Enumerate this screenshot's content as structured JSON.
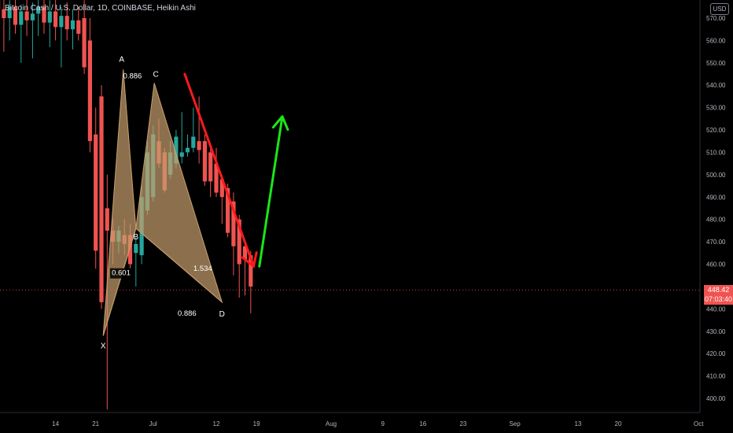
{
  "header": {
    "title": "Bitcoin Cash / U.S. Dollar, 1D, COINBASE, Heikin Ashi"
  },
  "currency": "USD",
  "last_price": {
    "value": "448.42",
    "countdown": "07:03:40"
  },
  "colors": {
    "background": "#000000",
    "up": "#26a69a",
    "down": "#ef5350",
    "pattern_fill": "#c8a06e",
    "arrow_down": "#ff1a1a",
    "arrow_up": "#19e619",
    "axis_text": "#b2b5be"
  },
  "chart_data": {
    "type": "candlestick",
    "style": "Heikin Ashi",
    "ylim": [
      392,
      575
    ],
    "y_ticks": [
      "400.00",
      "410.00",
      "420.00",
      "430.00",
      "440.00",
      "450.00",
      "460.00",
      "470.00",
      "480.00",
      "490.00",
      "500.00",
      "510.00",
      "520.00",
      "530.00",
      "540.00",
      "550.00",
      "560.00",
      "570.00"
    ],
    "x_ticks": [
      "14",
      "21",
      "Jul",
      "12",
      "19",
      "Aug",
      "9",
      "16",
      "23",
      "Sep",
      "13",
      "20",
      "Oct"
    ],
    "x_tick_days": [
      -3,
      4,
      14,
      25,
      32,
      45,
      54,
      61,
      68,
      77,
      88,
      95,
      109
    ],
    "candles": [
      {
        "d": -13,
        "o": 578,
        "h": 586,
        "l": 545,
        "c": 574
      },
      {
        "d": -12,
        "o": 574,
        "h": 582,
        "l": 555,
        "c": 570
      },
      {
        "d": -11,
        "o": 570,
        "h": 578,
        "l": 560,
        "c": 575
      },
      {
        "d": -10,
        "o": 575,
        "h": 580,
        "l": 563,
        "c": 567
      },
      {
        "d": -9,
        "o": 567,
        "h": 576,
        "l": 550,
        "c": 573
      },
      {
        "d": -8,
        "o": 573,
        "h": 580,
        "l": 562,
        "c": 569
      },
      {
        "d": -7,
        "o": 569,
        "h": 577,
        "l": 552,
        "c": 572
      },
      {
        "d": -6,
        "o": 572,
        "h": 581,
        "l": 562,
        "c": 575
      },
      {
        "d": -5,
        "o": 575,
        "h": 580,
        "l": 563,
        "c": 568
      },
      {
        "d": -4,
        "o": 568,
        "h": 578,
        "l": 557,
        "c": 573
      },
      {
        "d": -3,
        "o": 573,
        "h": 579,
        "l": 560,
        "c": 566
      },
      {
        "d": -2,
        "o": 566,
        "h": 575,
        "l": 548,
        "c": 571
      },
      {
        "d": -1,
        "o": 571,
        "h": 577,
        "l": 560,
        "c": 565
      },
      {
        "d": 0,
        "o": 565,
        "h": 574,
        "l": 556,
        "c": 569
      },
      {
        "d": 1,
        "o": 569,
        "h": 575,
        "l": 560,
        "c": 563
      },
      {
        "d": 2,
        "o": 570,
        "h": 578,
        "l": 545,
        "c": 548
      },
      {
        "d": 3,
        "o": 560,
        "h": 570,
        "l": 510,
        "c": 515
      },
      {
        "d": 4,
        "o": 518,
        "h": 530,
        "l": 458,
        "c": 466
      },
      {
        "d": 5,
        "o": 535,
        "h": 540,
        "l": 440,
        "c": 443
      },
      {
        "d": 6,
        "o": 485,
        "h": 500,
        "l": 395,
        "c": 475
      },
      {
        "d": 7,
        "o": 475,
        "h": 480,
        "l": 460,
        "c": 470
      },
      {
        "d": 8,
        "o": 470,
        "h": 477,
        "l": 465,
        "c": 475
      },
      {
        "d": 9,
        "o": 473,
        "h": 480,
        "l": 464,
        "c": 469
      },
      {
        "d": 10,
        "o": 473,
        "h": 478,
        "l": 458,
        "c": 460
      },
      {
        "d": 11,
        "o": 465,
        "h": 472,
        "l": 450,
        "c": 469
      },
      {
        "d": 12,
        "o": 464,
        "h": 495,
        "l": 460,
        "c": 490
      },
      {
        "d": 13,
        "o": 484,
        "h": 515,
        "l": 482,
        "c": 510
      },
      {
        "d": 14,
        "o": 490,
        "h": 522,
        "l": 488,
        "c": 518
      },
      {
        "d": 15,
        "o": 515,
        "h": 525,
        "l": 503,
        "c": 505
      },
      {
        "d": 16,
        "o": 510,
        "h": 512,
        "l": 492,
        "c": 493
      },
      {
        "d": 17,
        "o": 500,
        "h": 515,
        "l": 498,
        "c": 510
      },
      {
        "d": 18,
        "o": 505,
        "h": 520,
        "l": 503,
        "c": 517
      },
      {
        "d": 19,
        "o": 508,
        "h": 528,
        "l": 505,
        "c": 510
      },
      {
        "d": 20,
        "o": 510,
        "h": 518,
        "l": 508,
        "c": 512
      },
      {
        "d": 21,
        "o": 512,
        "h": 530,
        "l": 510,
        "c": 517
      },
      {
        "d": 22,
        "o": 515,
        "h": 535,
        "l": 505,
        "c": 511
      },
      {
        "d": 23,
        "o": 515,
        "h": 518,
        "l": 495,
        "c": 497
      },
      {
        "d": 24,
        "o": 510,
        "h": 512,
        "l": 490,
        "c": 497
      },
      {
        "d": 25,
        "o": 505,
        "h": 512,
        "l": 490,
        "c": 492
      },
      {
        "d": 26,
        "o": 498,
        "h": 500,
        "l": 478,
        "c": 490
      },
      {
        "d": 27,
        "o": 494,
        "h": 496,
        "l": 472,
        "c": 474
      },
      {
        "d": 28,
        "o": 488,
        "h": 492,
        "l": 455,
        "c": 468
      },
      {
        "d": 29,
        "o": 480,
        "h": 482,
        "l": 445,
        "c": 460
      },
      {
        "d": 30,
        "o": 468,
        "h": 470,
        "l": 446,
        "c": 462
      },
      {
        "d": 31,
        "o": 464,
        "h": 466,
        "l": 438,
        "c": 450
      }
    ]
  },
  "harmonic_pattern": {
    "points": [
      {
        "label": "X",
        "d": 5.3,
        "price": 428
      },
      {
        "label": "A",
        "d": 8.8,
        "price": 547
      },
      {
        "label": "B",
        "d": 11.0,
        "price": 476
      },
      {
        "label": "C",
        "d": 14.2,
        "price": 541
      },
      {
        "label": "D",
        "d": 26.0,
        "price": 443
      }
    ],
    "ratios": [
      "0.886",
      "0.601",
      "1.534",
      "0.886"
    ]
  },
  "arrows": [
    {
      "name": "bearish-projection",
      "from": {
        "d": 19.5,
        "price": 545
      },
      "to": {
        "d": 31.5,
        "price": 459
      }
    },
    {
      "name": "bullish-projection",
      "from": {
        "d": 32.5,
        "price": 459
      },
      "to": {
        "d": 36.5,
        "price": 526
      }
    }
  ]
}
